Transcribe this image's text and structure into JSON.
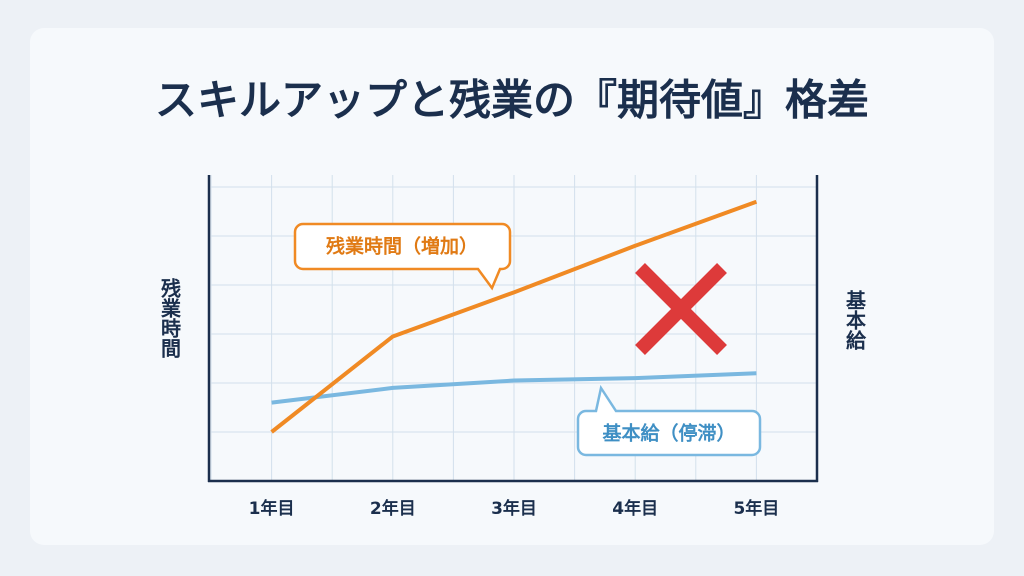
{
  "chart_data": {
    "type": "line",
    "title": "スキルアップと残業の『期待値』格差",
    "y_label": "残業時間",
    "y2_label": "基本給",
    "categories": [
      "1年目",
      "2年目",
      "3年目",
      "4年目",
      "5年目"
    ],
    "series": [
      {
        "name": "残業時間（増加）",
        "color": "#f08a24",
        "values": [
          1.0,
          2.95,
          3.85,
          4.8,
          5.7
        ]
      },
      {
        "name": "基本給（停滞）",
        "color": "#7ab8e0",
        "axis": "y2",
        "values": [
          1.6,
          1.9,
          2.05,
          2.1,
          2.2
        ]
      }
    ],
    "ylim": [
      0,
      6
    ],
    "y2lim": [
      0,
      6
    ],
    "grid": true
  }
}
